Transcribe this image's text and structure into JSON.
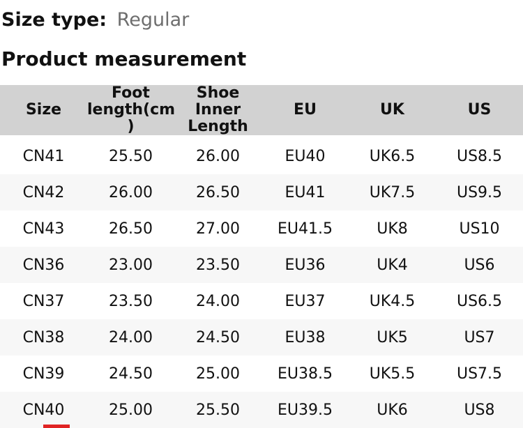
{
  "page": {
    "size_type_label": "Size type:",
    "size_type_value": "Regular",
    "section_title": "Product measurement"
  },
  "table": {
    "headers": [
      "Size",
      "Foot\nlength(cm\n)",
      "Shoe\nInner\nLength",
      "EU",
      "UK",
      "US"
    ],
    "rows": [
      [
        "CN41",
        "25.50",
        "26.00",
        "EU40",
        "UK6.5",
        "US8.5"
      ],
      [
        "CN42",
        "26.00",
        "26.50",
        "EU41",
        "UK7.5",
        "US9.5"
      ],
      [
        "CN43",
        "26.50",
        "27.00",
        "EU41.5",
        "UK8",
        "US10"
      ],
      [
        "CN36",
        "23.00",
        "23.50",
        "EU36",
        "UK4",
        "US6"
      ],
      [
        "CN37",
        "23.50",
        "24.00",
        "EU37",
        "UK4.5",
        "US6.5"
      ],
      [
        "CN38",
        "24.00",
        "24.50",
        "EU38",
        "UK5",
        "US7"
      ],
      [
        "CN39",
        "24.50",
        "25.00",
        "EU38.5",
        "UK5.5",
        "US7.5"
      ],
      [
        "CN40",
        "25.00",
        "25.50",
        "EU39.5",
        "UK6",
        "US8"
      ]
    ]
  },
  "colors": {
    "header_bg": "#d2d2d2",
    "row_alt_bg": "#f7f7f7",
    "text": "#111111",
    "muted_text": "#6e6e6e",
    "indicator_red": "#e02424"
  }
}
